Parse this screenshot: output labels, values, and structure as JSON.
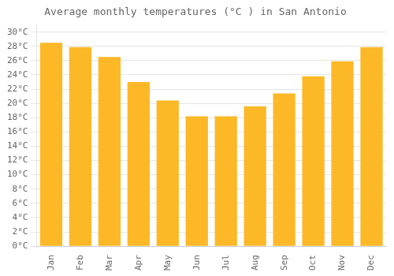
{
  "chart_data": {
    "type": "bar",
    "title": "Average monthly temperatures (°C ) in San Antonio",
    "categories": [
      "Jan",
      "Feb",
      "Mar",
      "Apr",
      "May",
      "Jun",
      "Jul",
      "Aug",
      "Sep",
      "Oct",
      "Nov",
      "Dec"
    ],
    "values": [
      28.5,
      27.9,
      26.5,
      23.0,
      20.4,
      18.2,
      18.2,
      19.6,
      21.4,
      23.8,
      25.9,
      27.9
    ],
    "color": "#FDB827",
    "ylim": [
      0,
      31
    ],
    "yticks": [
      {
        "value": 0,
        "label": "0°C"
      },
      {
        "value": 2,
        "label": "2°C"
      },
      {
        "value": 4,
        "label": "4°C"
      },
      {
        "value": 6,
        "label": "6°C"
      },
      {
        "value": 8,
        "label": "8°C"
      },
      {
        "value": 10,
        "label": "10°C"
      },
      {
        "value": 12,
        "label": "12°C"
      },
      {
        "value": 14,
        "label": "14°C"
      },
      {
        "value": 16,
        "label": "16°C"
      },
      {
        "value": 18,
        "label": "18°C"
      },
      {
        "value": 20,
        "label": "20°C"
      },
      {
        "value": 22,
        "label": "22°C"
      },
      {
        "value": 24,
        "label": "24°C"
      },
      {
        "value": 26,
        "label": "26°C"
      },
      {
        "value": 28,
        "label": "28°C"
      },
      {
        "value": 30,
        "label": "30°C"
      }
    ],
    "grid": true
  }
}
